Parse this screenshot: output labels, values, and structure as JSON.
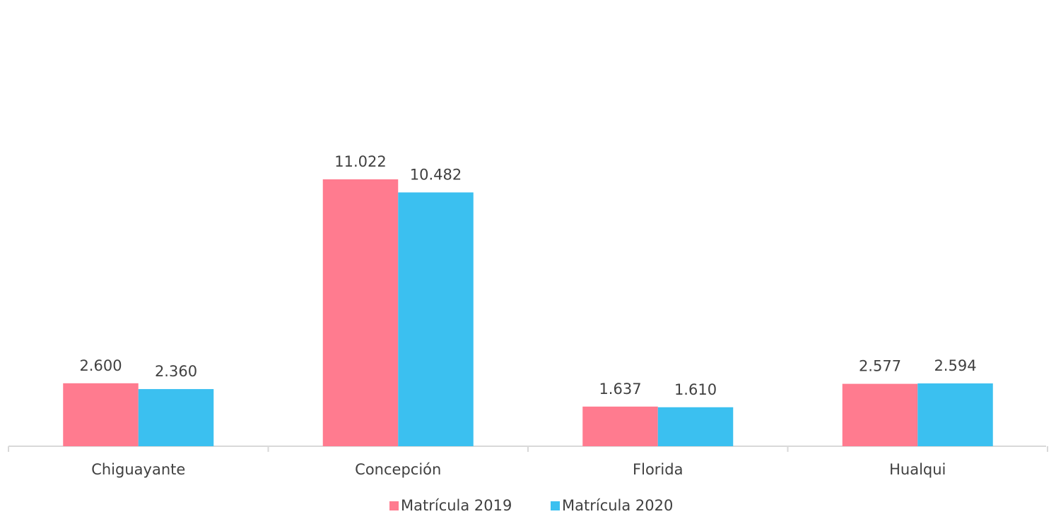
{
  "chart_data": {
    "type": "bar",
    "categories": [
      "Chiguayante",
      "Concepción",
      "Florida",
      "Hualqui"
    ],
    "series": [
      {
        "name": "Matrícula 2019",
        "color": "#ff7b8f",
        "values": [
          2600,
          11022,
          1637,
          2577
        ],
        "value_labels": [
          "2.600",
          "11.022",
          "1.637",
          "2.577"
        ]
      },
      {
        "name": "Matrícula 2020",
        "color": "#3bc0f0",
        "values": [
          2360,
          10482,
          1610,
          2594
        ],
        "value_labels": [
          "2.360",
          "10.482",
          "1.610",
          "2.594"
        ]
      }
    ],
    "legend": "bottom"
  }
}
